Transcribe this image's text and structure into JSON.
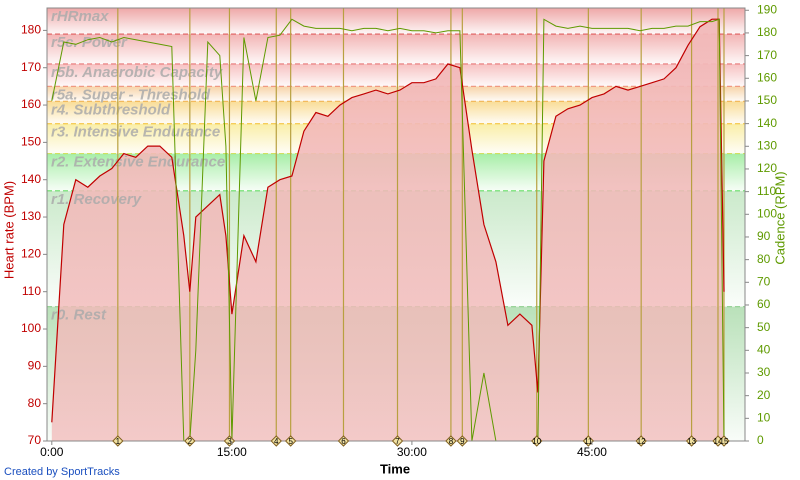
{
  "chart_data": {
    "type": "line",
    "x_label": "Time",
    "y_label": "Heart rate (BPM)",
    "y2_label": "Cadence (RPM)",
    "credit": "Created by SportTracks",
    "xlim": [
      -0.4,
      57.75
    ],
    "xticks": [
      {
        "value": 0,
        "label": "0:00"
      },
      {
        "value": 15,
        "label": "15:00"
      },
      {
        "value": 30,
        "label": "30:00"
      },
      {
        "value": 45,
        "label": "45:00"
      }
    ],
    "ylim": [
      70,
      186
    ],
    "yticks": [
      70,
      80,
      90,
      100,
      110,
      120,
      130,
      140,
      150,
      160,
      170,
      180
    ],
    "y2lim": [
      0,
      191
    ],
    "y2ticks": [
      0,
      10,
      20,
      30,
      40,
      50,
      60,
      70,
      80,
      90,
      100,
      110,
      120,
      130,
      140,
      150,
      160,
      170,
      180,
      190
    ],
    "x": [
      0,
      1,
      2,
      3,
      4,
      5,
      6,
      7,
      8,
      9,
      10,
      11,
      11.5,
      12,
      13,
      14,
      14.5,
      15,
      16,
      17,
      18,
      19,
      20,
      21,
      22,
      23,
      24,
      25,
      26,
      27,
      28,
      29,
      30,
      31,
      32,
      33,
      34,
      35,
      36,
      37,
      38,
      39,
      40,
      40.5,
      41,
      42,
      43,
      44,
      45,
      46,
      47,
      48,
      49,
      50,
      51,
      52,
      53,
      54,
      55,
      55.6,
      56
    ],
    "series": [
      {
        "name": "Heart rate",
        "color": "#c00000",
        "fill": "#f2b9b9",
        "values": [
          75,
          128,
          140,
          138,
          141,
          143,
          147,
          146,
          149,
          149,
          146,
          125,
          110,
          130,
          133,
          136,
          125,
          104,
          125,
          118,
          138,
          140,
          141,
          153,
          158,
          157,
          160,
          162,
          163,
          164,
          163,
          164,
          166,
          166,
          167,
          171,
          170,
          148,
          128,
          118,
          101,
          104,
          101,
          83,
          145,
          157,
          159,
          160,
          162,
          163,
          165,
          164,
          165,
          166,
          167,
          170,
          176,
          181,
          183,
          183,
          110
        ]
      },
      {
        "name": "Cadence",
        "color": "#5f9a00",
        "axis": "y2",
        "values": [
          150,
          176,
          175,
          177,
          178,
          176,
          178,
          177,
          176,
          175,
          174,
          0,
          0,
          40,
          176,
          170,
          130,
          0,
          178,
          150,
          178,
          179,
          186,
          183,
          182,
          182,
          182,
          181,
          182,
          182,
          181,
          182,
          181,
          181,
          180,
          181,
          181,
          0,
          30,
          0,
          0,
          0,
          0,
          0,
          186,
          183,
          182,
          183,
          182,
          182,
          182,
          182,
          181,
          182,
          182,
          183,
          183,
          185,
          185,
          186,
          0
        ]
      }
    ],
    "zones": [
      {
        "name": "rHRmax",
        "min": 179,
        "color": "#e06060"
      },
      {
        "name": "r5c. Power",
        "min": 171,
        "color": "#e87878"
      },
      {
        "name": "r5b. Anaerobic Capacity",
        "min": 165,
        "color": "#f09090"
      },
      {
        "name": "r5a. Super - Threshold",
        "min": 161,
        "color": "#f0b060"
      },
      {
        "name": "r4. Subthreshold",
        "min": 155,
        "color": "#f5c040"
      },
      {
        "name": "r3. Intensive Endurance",
        "min": 147,
        "color": "#f5e060"
      },
      {
        "name": "r2. Extensive Endurance",
        "min": 137,
        "color": "#60e060"
      },
      {
        "name": "r1. Recovery",
        "min": 106,
        "color": "#a0d8a0"
      },
      {
        "name": "r0. Rest",
        "color": "#80c880"
      }
    ],
    "laps": {
      "labels": [
        "1",
        "2",
        "3",
        "4",
        "5",
        "6",
        "7",
        "8",
        "9",
        "10",
        "11",
        "12",
        "13",
        "14",
        "15"
      ],
      "x": [
        5.5,
        11.5,
        14.8,
        18.7,
        19.9,
        24.3,
        28.8,
        33.25,
        34.2,
        40.4,
        44.7,
        49.1,
        53.3,
        55.5,
        56.0
      ]
    }
  }
}
